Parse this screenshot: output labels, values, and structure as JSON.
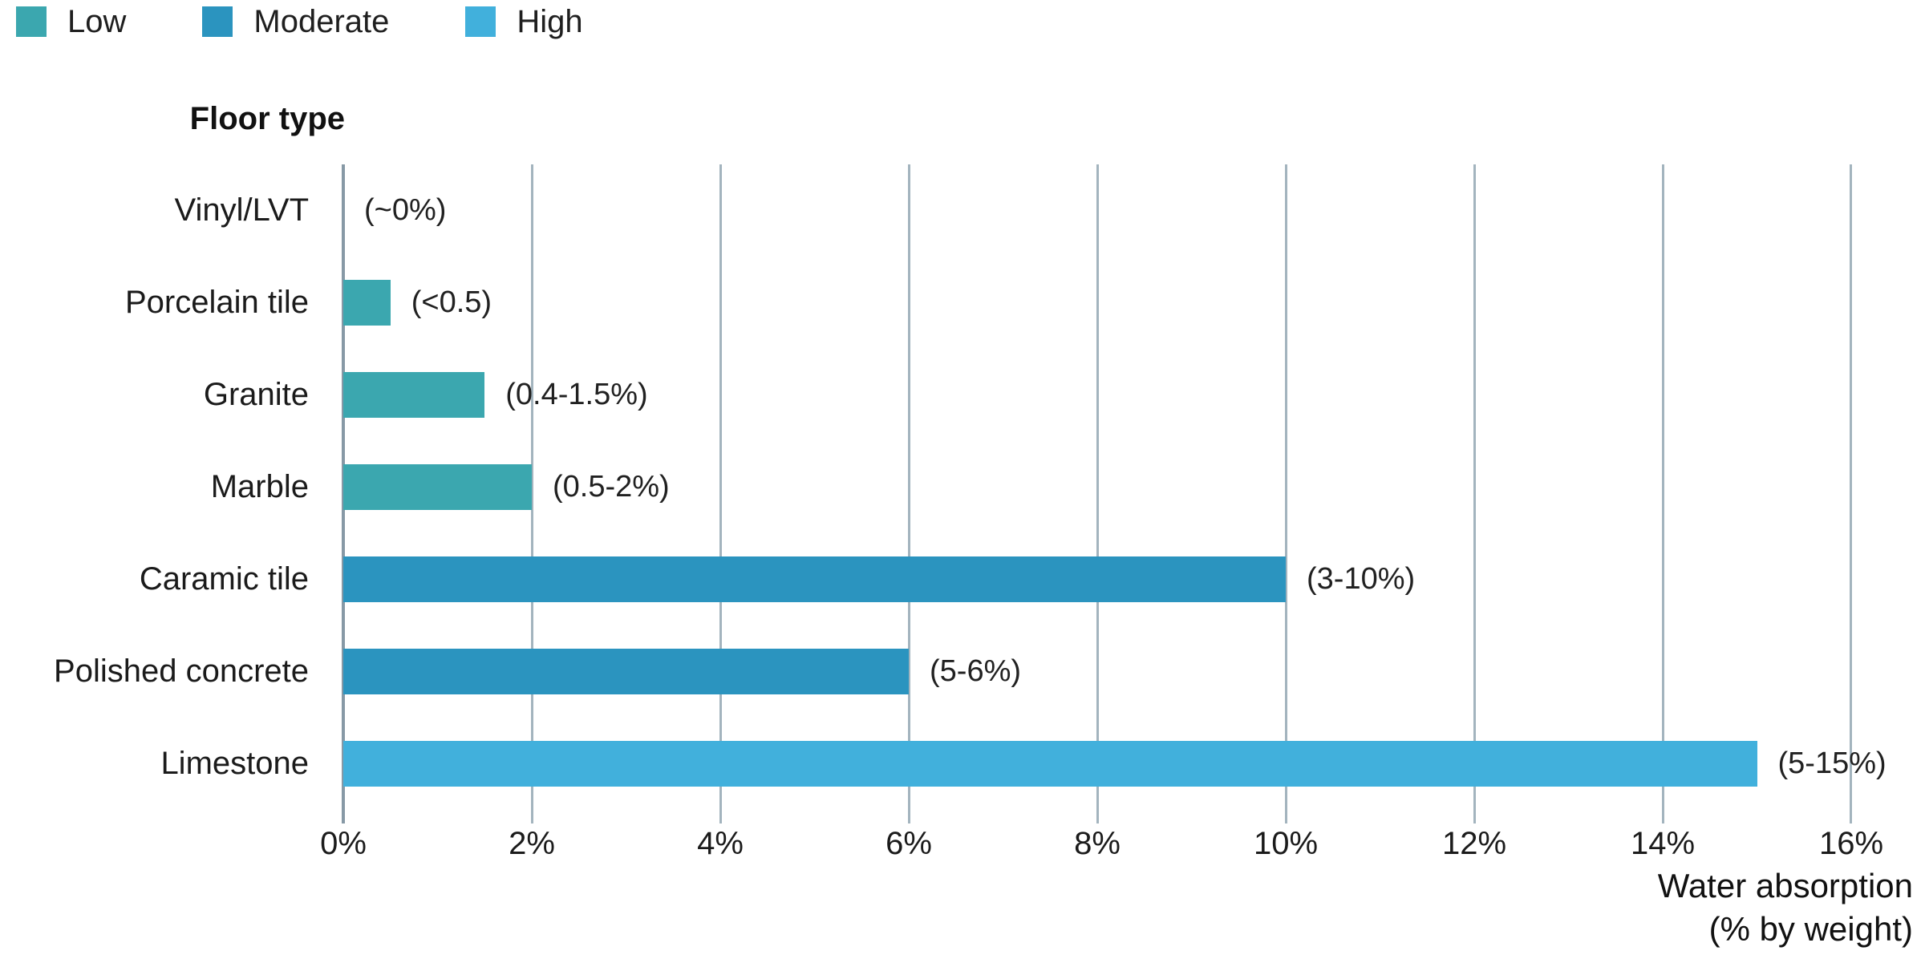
{
  "legend": {
    "items": [
      {
        "label": "Low",
        "color": "#3BA7AF"
      },
      {
        "label": "Moderate",
        "color": "#2B94BF"
      },
      {
        "label": "High",
        "color": "#41B0DC"
      }
    ]
  },
  "axis": {
    "line_color": "#8799A6",
    "grid_color": "#A3B4BE"
  },
  "chart_data": {
    "type": "bar",
    "orientation": "horizontal",
    "ylabel": "Floor type",
    "xlabel": "Water absorption (% by weight)",
    "xlabel_lines": [
      "Water absorption",
      "(% by weight)"
    ],
    "xlim": [
      0,
      16
    ],
    "x_ticks": [
      "0%",
      "2%",
      "4%",
      "6%",
      "8%",
      "10%",
      "12%",
      "14%",
      "16%"
    ],
    "grid": true,
    "legend_position": "top-left",
    "legend_entries": [
      "Low",
      "Moderate",
      "High"
    ],
    "colors": {
      "Low": "#3BA7AF",
      "Moderate": "#2B94BF",
      "High": "#41B0DC"
    },
    "rows": [
      {
        "label": "Vinyl/LVT",
        "value": 0,
        "annotation": "(~0%)",
        "category": "Low"
      },
      {
        "label": "Porcelain tile",
        "value": 0.5,
        "annotation": "(<0.5)",
        "category": "Low"
      },
      {
        "label": "Granite",
        "value": 1.5,
        "annotation": "(0.4-1.5%)",
        "category": "Low"
      },
      {
        "label": "Marble",
        "value": 2,
        "annotation": "(0.5-2%)",
        "category": "Low"
      },
      {
        "label": "Caramic tile",
        "value": 10,
        "annotation": "(3-10%)",
        "category": "Moderate"
      },
      {
        "label": "Polished concrete",
        "value": 6,
        "annotation": "(5-6%)",
        "category": "Moderate"
      },
      {
        "label": "Limestone",
        "value": 15,
        "annotation": "(5-15%)",
        "category": "High"
      }
    ]
  }
}
